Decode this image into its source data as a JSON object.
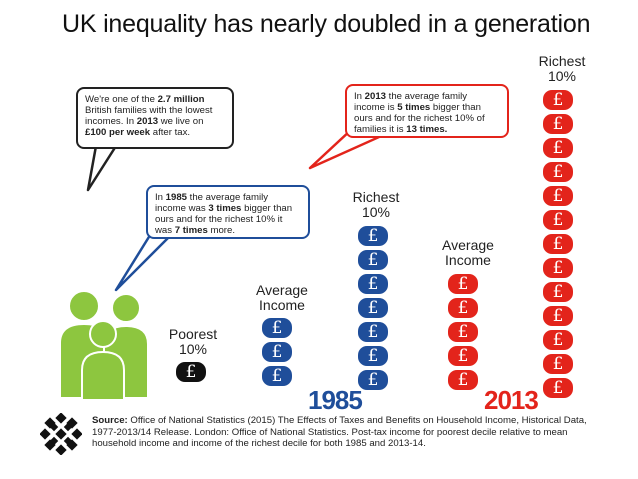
{
  "title": "UK inequality has nearly doubled in a generation",
  "bubbles": {
    "poorest": {
      "line1_pre": "We're one of the ",
      "line1_bold": "2.7 million",
      "line2": "British families with the lowest",
      "line3_pre": "incomes. In ",
      "line3_bold": "2013",
      "line3_post": " we live on",
      "line4_bold": "£100 per week",
      "line4_post": " after tax."
    },
    "y2013": {
      "pre1": "In ",
      "year": "2013",
      "post1": " the average family",
      "pre2": "income is ",
      "times_avg": "5 times",
      "post2": " bigger than",
      "line3": "ours and for the richest 10% of",
      "pre4": "families it is ",
      "times_rich": "13 times.",
      "post4": ""
    },
    "y1985": {
      "pre1": "In ",
      "year": "1985",
      "post1": " the average family",
      "pre2": "income was ",
      "times_avg": "3 times",
      "post2": " bigger than",
      "line3": "ours and for the richest 10% it",
      "pre4": "was ",
      "times_rich": "7 times",
      "post4": " more."
    }
  },
  "labels": {
    "poorest_line1": "Poorest",
    "poorest_line2": "10%",
    "avg1985_line1": "Average",
    "avg1985_line2": "Income",
    "rich1985_line1": "Richest",
    "rich1985_line2": "10%",
    "avg2013_line1": "Average",
    "avg2013_line2": "Income",
    "rich2013_line1": "Richest",
    "rich2013_line2": "10%"
  },
  "years": {
    "y1985": "1985",
    "y2013": "2013"
  },
  "coin_symbol": "£",
  "stacks": {
    "poorest": 1,
    "avg1985": 3,
    "rich1985": 7,
    "avg2013": 5,
    "rich2013": 13
  },
  "colors": {
    "blue": "#1f4e9a",
    "red": "#e3241b",
    "black": "#111111",
    "people_green": "#8dc63f"
  },
  "source": {
    "bold": "Source:",
    "text": " Office of National Statistics (2015) The Effects of Taxes and Benefits on Household Income, Historical Data, 1977-2013/14 Release. London: Office of National Statistics. Post-tax income for poorest decile relative to mean household income and income of the richest decile for both 1985 and 2013-14."
  },
  "icons": {
    "logo": "snowflake-lattice-logo",
    "people": "family-people-icon"
  }
}
